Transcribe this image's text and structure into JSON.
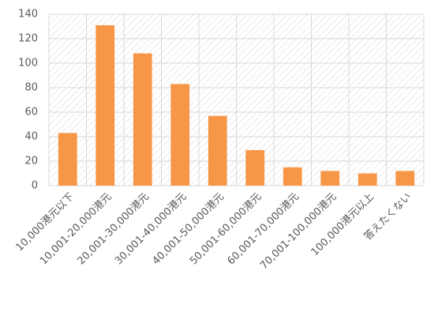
{
  "chart_data": {
    "type": "bar",
    "categories": [
      "10,000港元以下",
      "10,001-20,000港元",
      "20,001-30,000港元",
      "30,001-40,000港元",
      "40,001-50,000港元",
      "50,001-60,000港元",
      "60,001-70,000港元",
      "70,001-100,000港元",
      "100,000港元以上",
      "答えたくない"
    ],
    "values": [
      43,
      131,
      108,
      83,
      57,
      29,
      15,
      12,
      10,
      12
    ],
    "color": "#f79646",
    "ylim": [
      0,
      140
    ],
    "yticks": [
      0,
      20,
      40,
      60,
      80,
      100,
      120,
      140
    ],
    "grid": true
  }
}
